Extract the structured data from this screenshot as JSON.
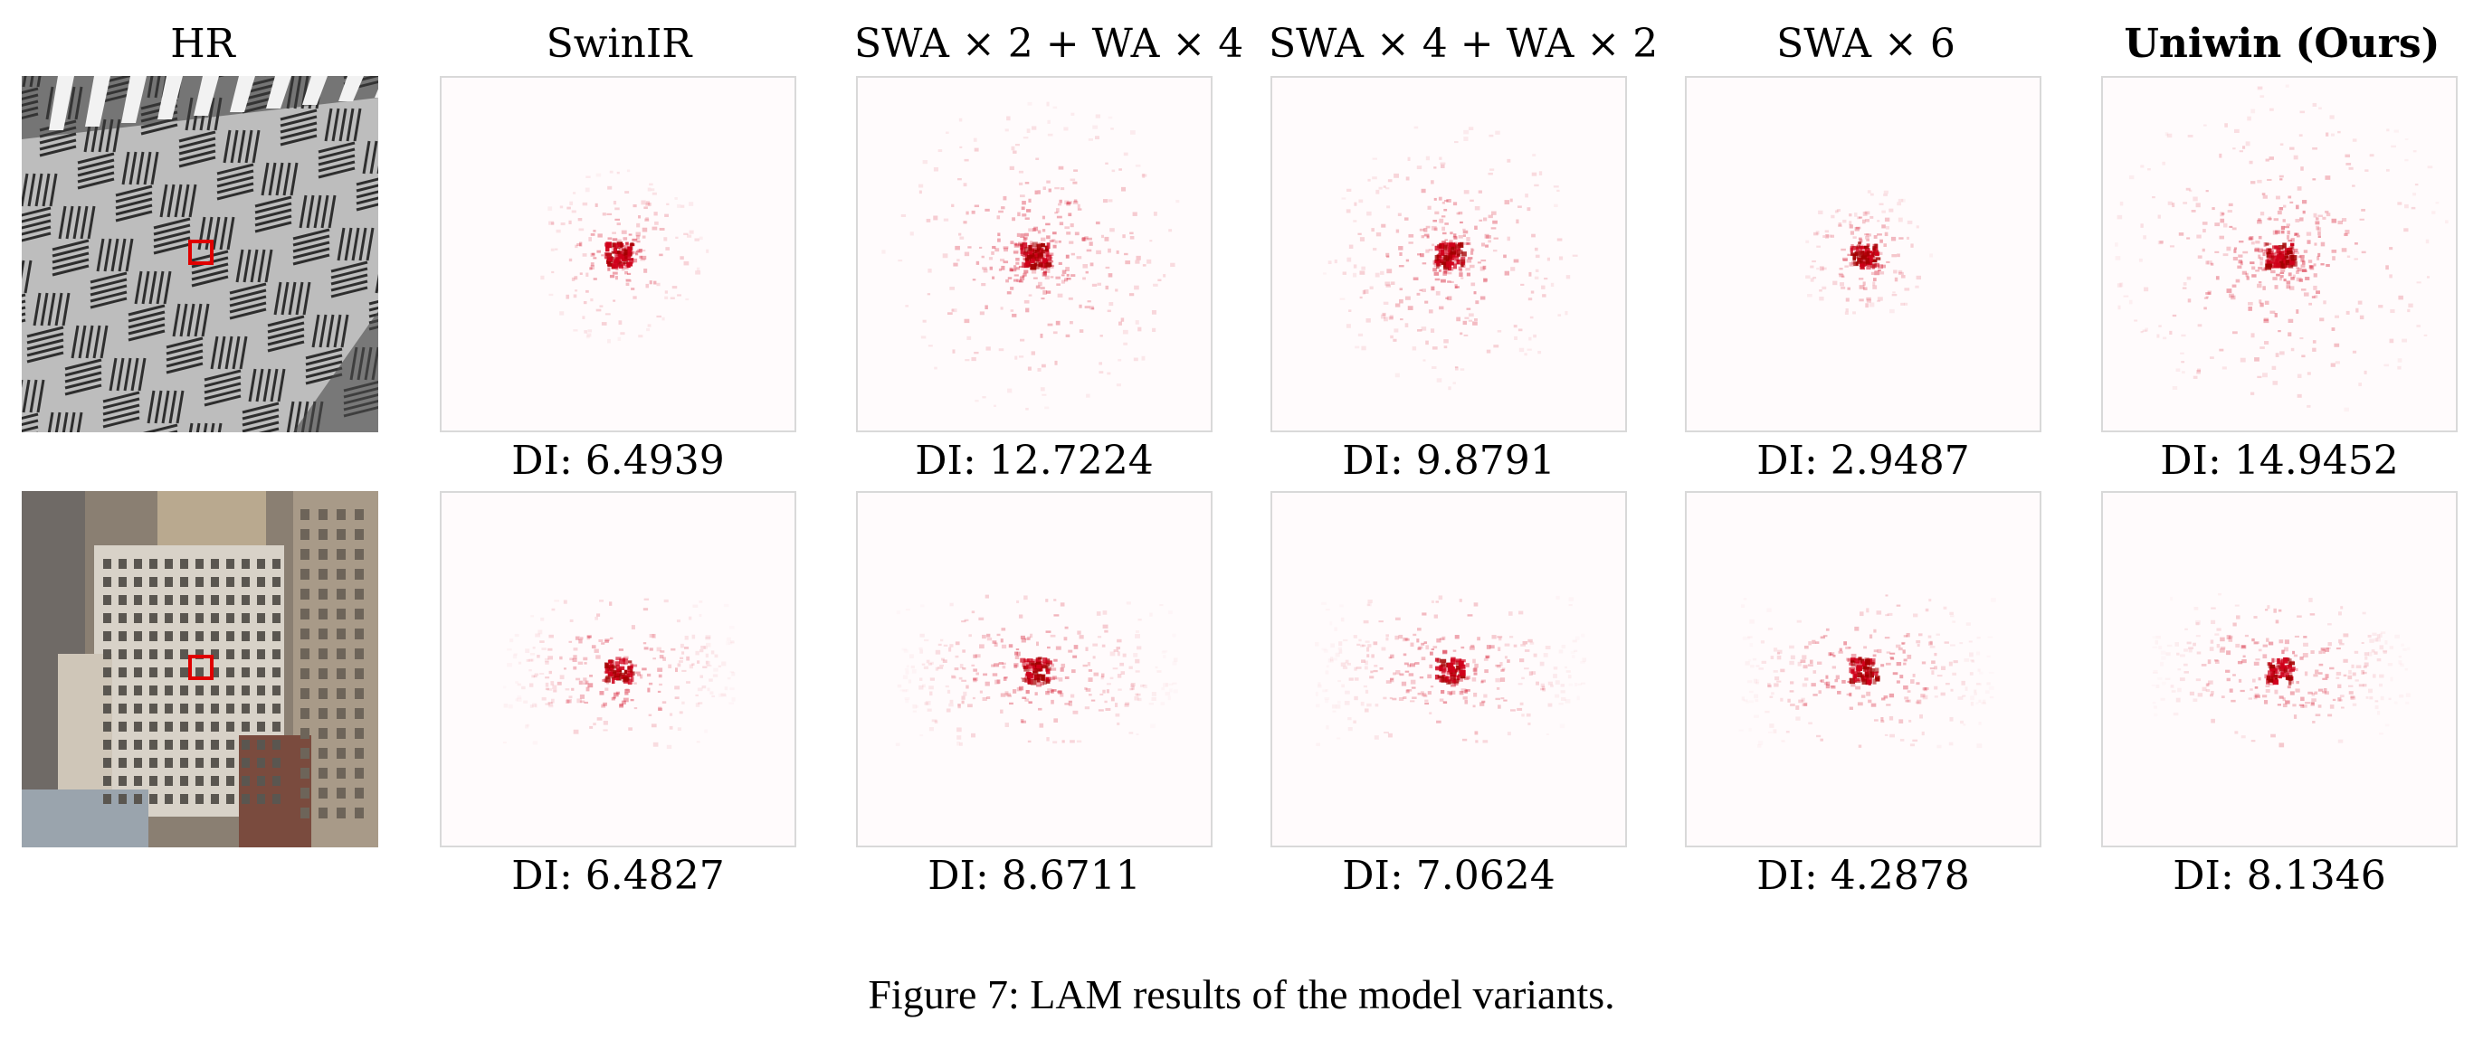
{
  "figure": {
    "columns": [
      {
        "label": "HR",
        "bold": false
      },
      {
        "label": "SwinIR",
        "bold": false
      },
      {
        "label": "SWA × 2 + WA × 4",
        "bold": false
      },
      {
        "label": "SWA × 4 + WA × 2",
        "bold": false
      },
      {
        "label": "SWA × 6",
        "bold": false
      },
      {
        "label": "Uniwin (Ours)",
        "bold": true
      }
    ],
    "rows": [
      {
        "image": "building-facade-photo",
        "di": [
          "DI: 6.4939",
          "DI: 12.7224",
          "DI: 9.8791",
          "DI: 2.9487",
          "DI: 14.9452"
        ]
      },
      {
        "image": "city-skyline-photo",
        "di": [
          "DI: 6.4827",
          "DI: 8.6711",
          "DI: 7.0624",
          "DI: 4.2878",
          "DI: 8.1346"
        ]
      }
    ],
    "caption": "Figure 7: LAM results of the model variants.",
    "highlight_color": "#e00000",
    "heatmap_color": "#d0001a"
  }
}
